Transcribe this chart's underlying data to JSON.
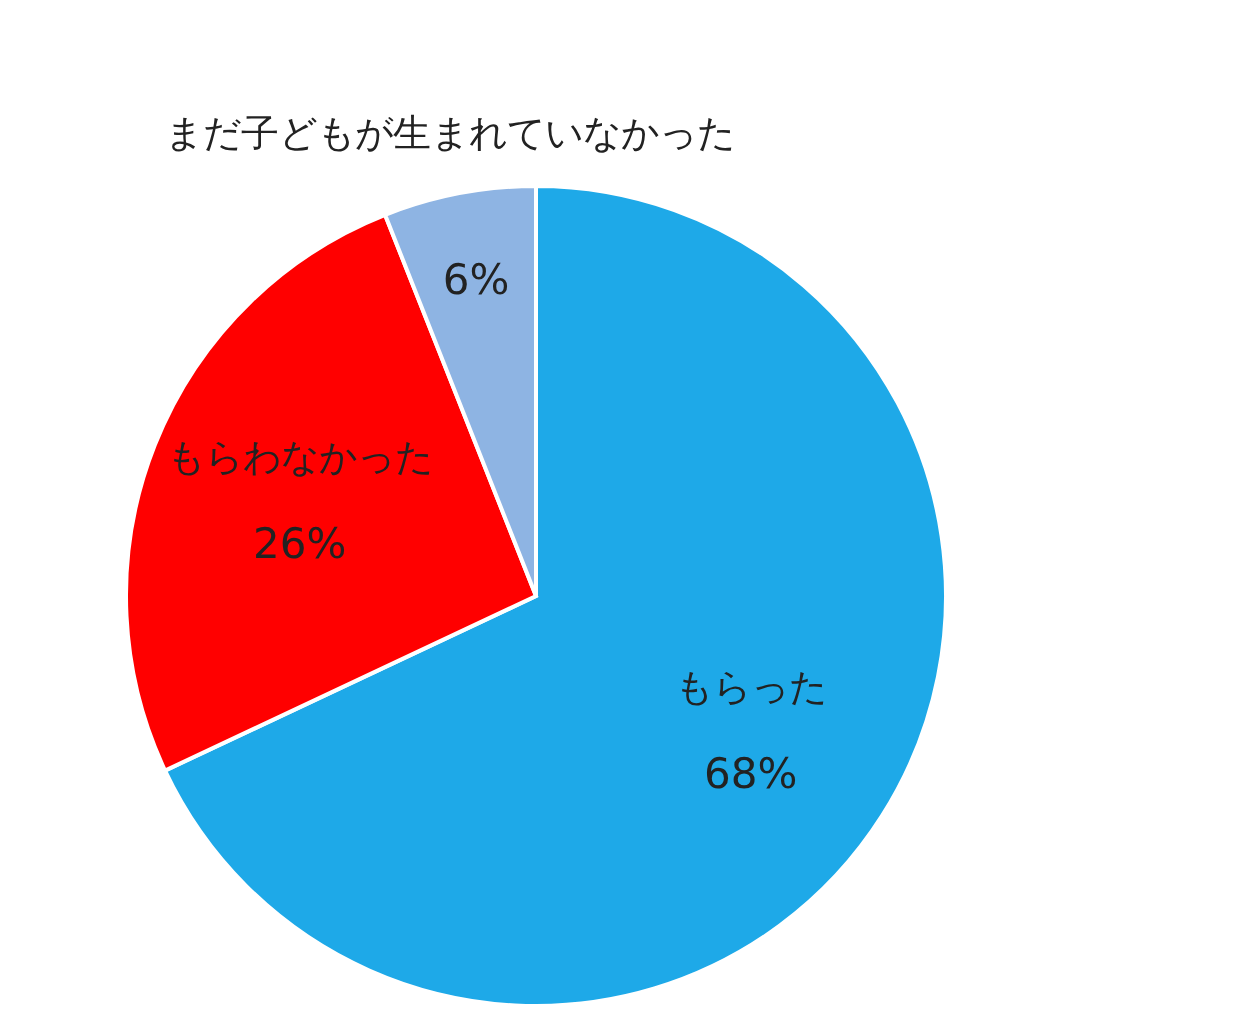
{
  "chart_data": {
    "type": "pie",
    "categories": [
      "もらった",
      "もらわなかった",
      "まだ子どもが生まれていなかった"
    ],
    "values": [
      68,
      26,
      6
    ],
    "value_labels": [
      "68%",
      "26%",
      "6%"
    ],
    "colors": [
      "#1ea9e8",
      "#ff0000",
      "#8eb4e3"
    ]
  }
}
